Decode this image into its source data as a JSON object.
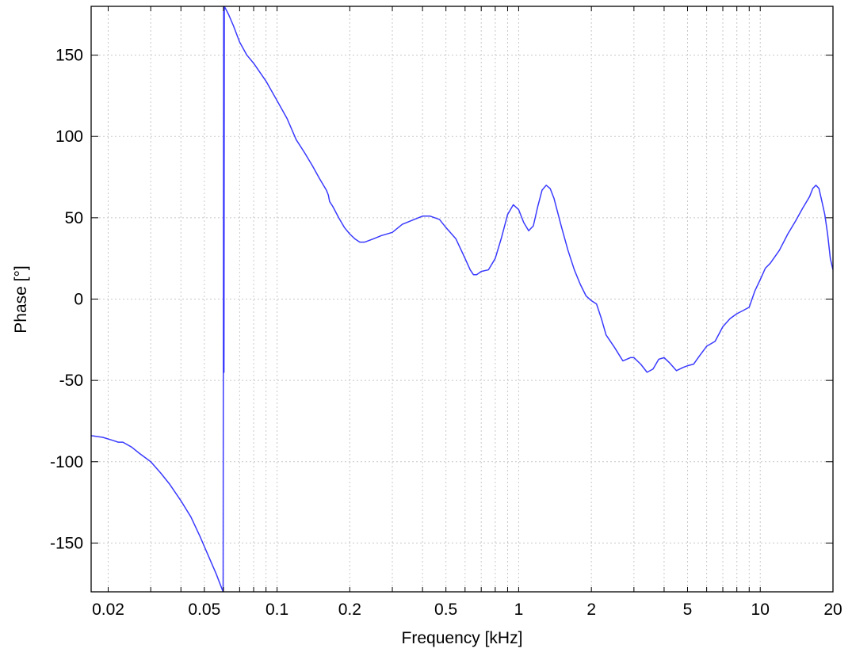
{
  "chart_data": {
    "type": "line",
    "title": "",
    "xlabel": "Frequency [kHz]",
    "ylabel": "Phase [°]",
    "x_scale": "log",
    "xlim": [
      0.017,
      20
    ],
    "ylim": [
      -180,
      180
    ],
    "grid": true,
    "x_ticks": [
      {
        "value": 0.02,
        "label": "0.02"
      },
      {
        "value": 0.05,
        "label": "0.05"
      },
      {
        "value": 0.1,
        "label": "0.1"
      },
      {
        "value": 0.2,
        "label": "0.2"
      },
      {
        "value": 0.5,
        "label": "0.5"
      },
      {
        "value": 1,
        "label": "1"
      },
      {
        "value": 2,
        "label": "2"
      },
      {
        "value": 5,
        "label": "5"
      },
      {
        "value": 10,
        "label": "10"
      },
      {
        "value": 20,
        "label": "20"
      }
    ],
    "y_ticks": [
      {
        "value": 150,
        "label": "150"
      },
      {
        "value": 100,
        "label": "100"
      },
      {
        "value": 50,
        "label": "50"
      },
      {
        "value": 0,
        "label": "0"
      },
      {
        "value": -50,
        "label": "-50"
      },
      {
        "value": -100,
        "label": "-100"
      },
      {
        "value": -150,
        "label": "-150"
      }
    ],
    "series": [
      {
        "color": "#3a3aff",
        "points": [
          [
            0.017,
            -84
          ],
          [
            0.019,
            -85
          ],
          [
            0.021,
            -87
          ],
          [
            0.022,
            -88
          ],
          [
            0.023,
            -88
          ],
          [
            0.025,
            -91
          ],
          [
            0.027,
            -95
          ],
          [
            0.03,
            -100
          ],
          [
            0.033,
            -107
          ],
          [
            0.036,
            -114
          ],
          [
            0.04,
            -124
          ],
          [
            0.044,
            -134
          ],
          [
            0.048,
            -146
          ],
          [
            0.052,
            -158
          ],
          [
            0.056,
            -169
          ],
          [
            0.0598,
            -180
          ],
          [
            0.0601,
            180
          ],
          [
            0.0603,
            -45
          ],
          [
            0.0605,
            180
          ],
          [
            0.063,
            175
          ],
          [
            0.066,
            168
          ],
          [
            0.07,
            158
          ],
          [
            0.075,
            150
          ],
          [
            0.08,
            145
          ],
          [
            0.09,
            134
          ],
          [
            0.1,
            122
          ],
          [
            0.11,
            111
          ],
          [
            0.12,
            98
          ],
          [
            0.13,
            90
          ],
          [
            0.14,
            82
          ],
          [
            0.15,
            74
          ],
          [
            0.16,
            67
          ],
          [
            0.163,
            64
          ],
          [
            0.165,
            60
          ],
          [
            0.17,
            57
          ],
          [
            0.18,
            50
          ],
          [
            0.19,
            44
          ],
          [
            0.2,
            40
          ],
          [
            0.21,
            37
          ],
          [
            0.22,
            35
          ],
          [
            0.23,
            35
          ],
          [
            0.25,
            37
          ],
          [
            0.27,
            39
          ],
          [
            0.3,
            41
          ],
          [
            0.33,
            46
          ],
          [
            0.37,
            49
          ],
          [
            0.4,
            51
          ],
          [
            0.43,
            51
          ],
          [
            0.47,
            49
          ],
          [
            0.5,
            44
          ],
          [
            0.55,
            37
          ],
          [
            0.6,
            25
          ],
          [
            0.63,
            18
          ],
          [
            0.65,
            15
          ],
          [
            0.67,
            15
          ],
          [
            0.7,
            17
          ],
          [
            0.75,
            18
          ],
          [
            0.8,
            25
          ],
          [
            0.85,
            38
          ],
          [
            0.9,
            52
          ],
          [
            0.95,
            58
          ],
          [
            1.0,
            55
          ],
          [
            1.05,
            47
          ],
          [
            1.1,
            42
          ],
          [
            1.15,
            45
          ],
          [
            1.2,
            57
          ],
          [
            1.25,
            67
          ],
          [
            1.3,
            70
          ],
          [
            1.35,
            68
          ],
          [
            1.4,
            62
          ],
          [
            1.5,
            45
          ],
          [
            1.6,
            30
          ],
          [
            1.7,
            18
          ],
          [
            1.8,
            9
          ],
          [
            1.9,
            2
          ],
          [
            2.0,
            -1
          ],
          [
            2.1,
            -3
          ],
          [
            2.2,
            -12
          ],
          [
            2.3,
            -22
          ],
          [
            2.5,
            -30
          ],
          [
            2.7,
            -38
          ],
          [
            2.9,
            -36
          ],
          [
            3.0,
            -36
          ],
          [
            3.2,
            -40
          ],
          [
            3.4,
            -45
          ],
          [
            3.6,
            -43
          ],
          [
            3.8,
            -37
          ],
          [
            4.0,
            -36
          ],
          [
            4.2,
            -39
          ],
          [
            4.5,
            -44
          ],
          [
            4.8,
            -42
          ],
          [
            5.0,
            -41
          ],
          [
            5.3,
            -40
          ],
          [
            5.6,
            -35
          ],
          [
            6.0,
            -29
          ],
          [
            6.5,
            -26
          ],
          [
            7.0,
            -17
          ],
          [
            7.5,
            -12
          ],
          [
            8.0,
            -9
          ],
          [
            8.5,
            -7
          ],
          [
            9.0,
            -5
          ],
          [
            9.5,
            5
          ],
          [
            10.0,
            12
          ],
          [
            10.5,
            19
          ],
          [
            11.0,
            22
          ],
          [
            12.0,
            30
          ],
          [
            13.0,
            40
          ],
          [
            14.0,
            48
          ],
          [
            15.0,
            56
          ],
          [
            16.0,
            63
          ],
          [
            16.5,
            68
          ],
          [
            17.0,
            70
          ],
          [
            17.5,
            68
          ],
          [
            18.0,
            60
          ],
          [
            18.5,
            52
          ],
          [
            19.0,
            40
          ],
          [
            19.5,
            25
          ],
          [
            20.0,
            18
          ]
        ]
      }
    ]
  }
}
